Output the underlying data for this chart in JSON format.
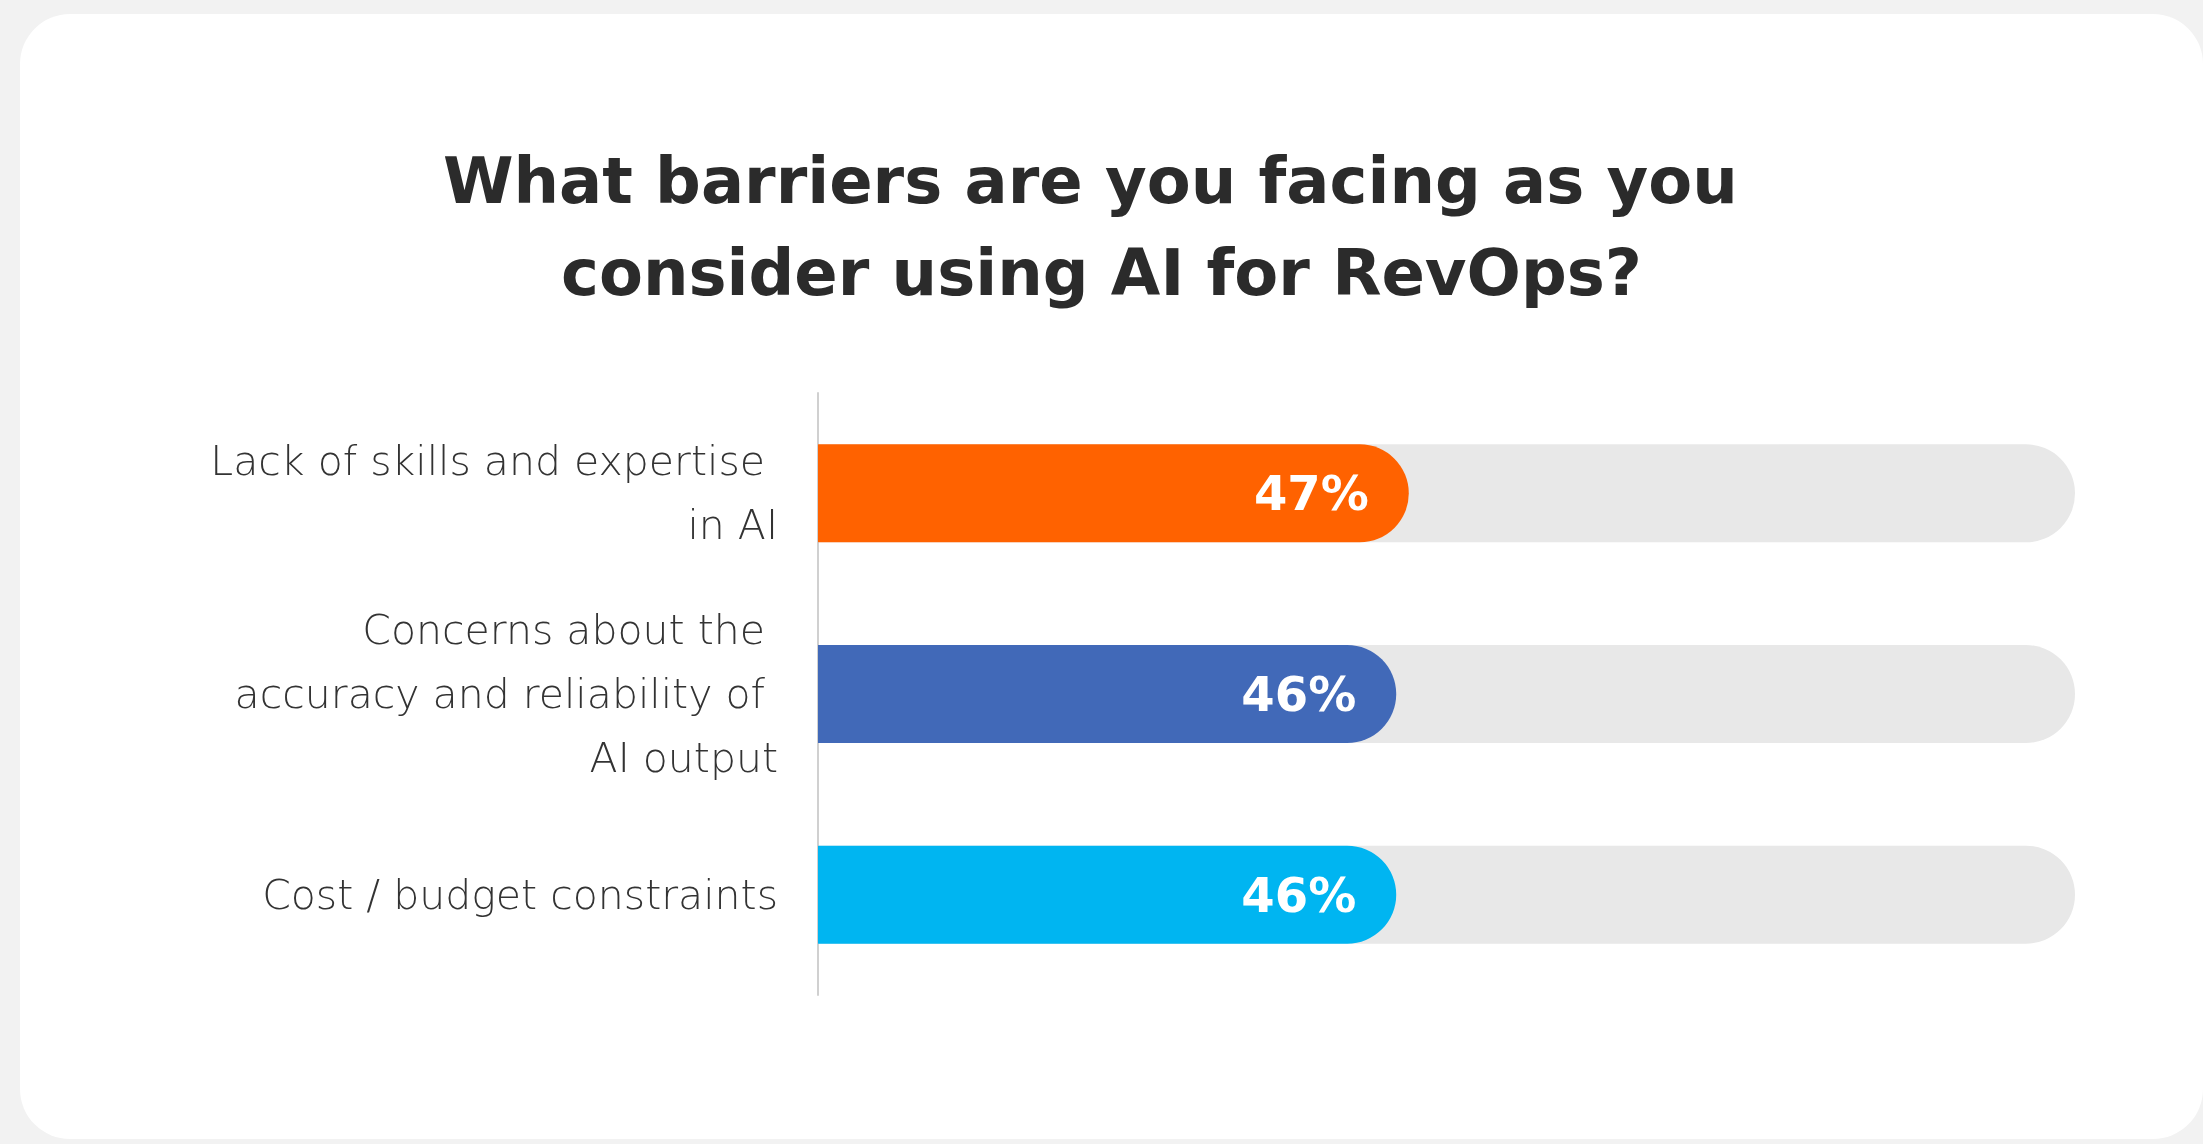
{
  "chart_data": {
    "type": "bar",
    "orientation": "horizontal",
    "title": "What barriers are you facing as you consider using AI for RevOps?",
    "categories": [
      "Lack of skills and expertise in AI",
      "Concerns about the accuracy and reliability of AI output",
      "Cost / budget constraints"
    ],
    "values": [
      47,
      46,
      46
    ],
    "colors": [
      "#ff6200",
      "#4169b8",
      "#00b5f1"
    ],
    "value_labels": [
      "47%",
      "46%",
      "46%"
    ],
    "xlim": [
      0,
      100
    ],
    "tick_labels": "y"
  }
}
